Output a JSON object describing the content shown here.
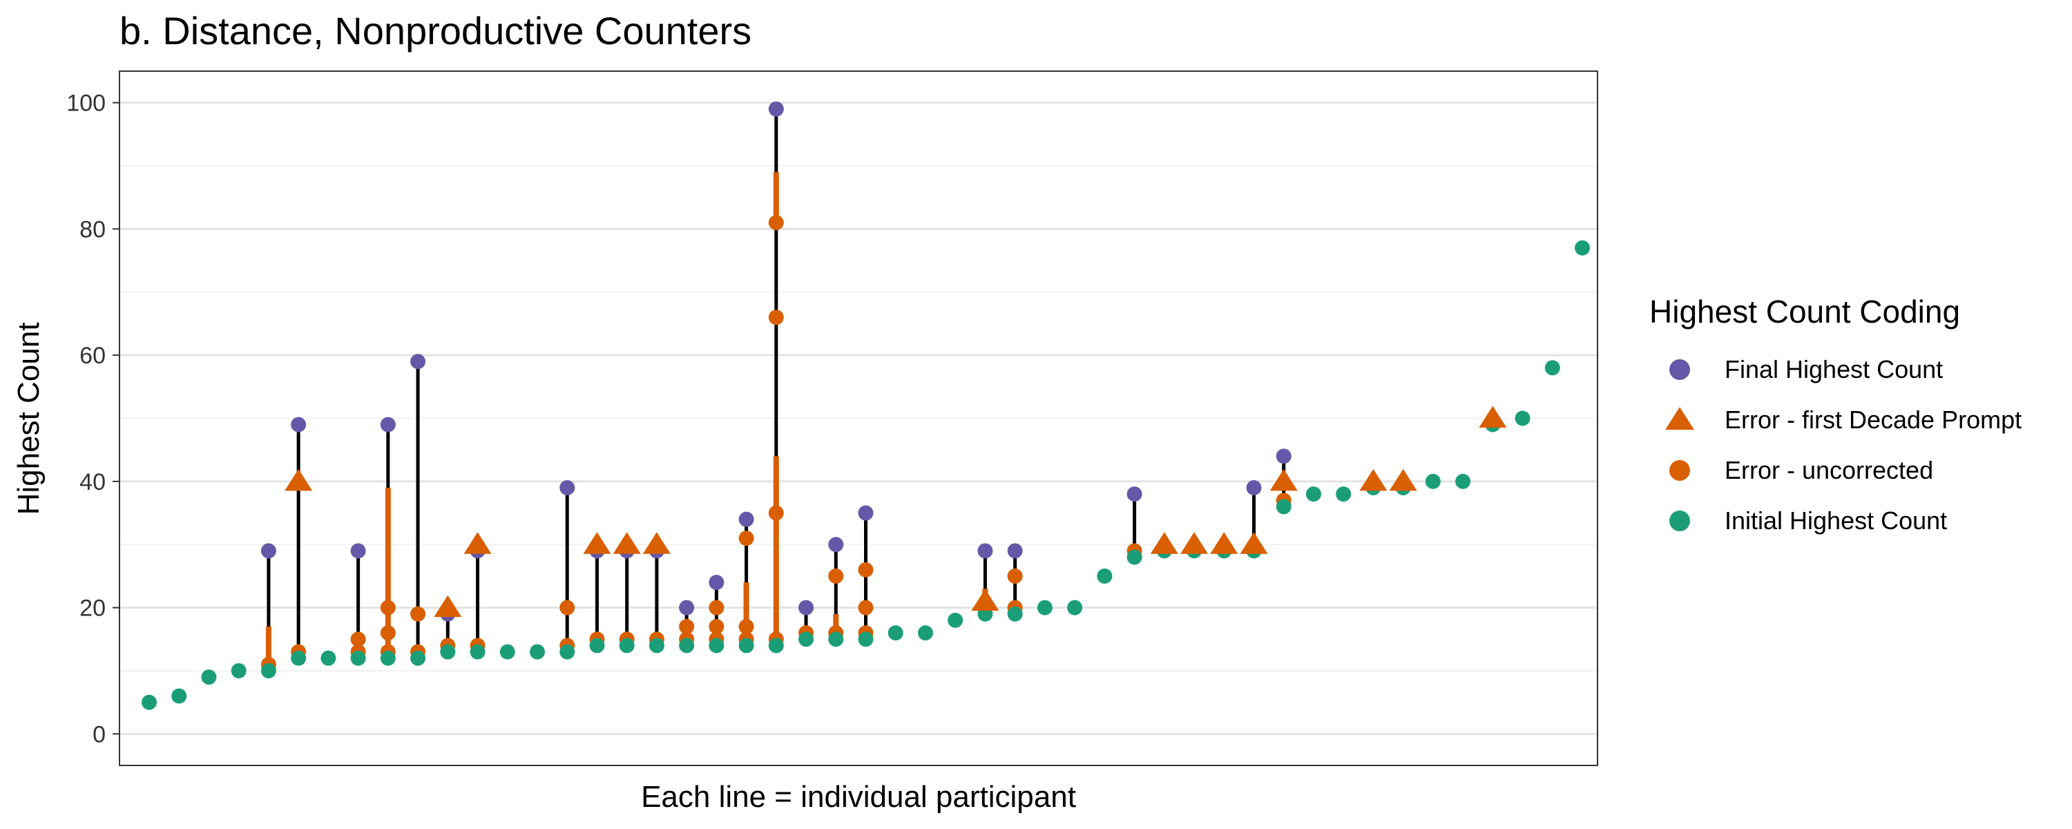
{
  "chart_data": {
    "type": "scatter",
    "title": "b. Distance, Nonproductive Counters",
    "xlabel": "Each line = individual participant",
    "ylabel": "Highest Count",
    "ylim": [
      -5,
      105
    ],
    "yticks": [
      0,
      20,
      40,
      60,
      80,
      100
    ],
    "grid": true,
    "legend": {
      "title": "Highest Count Coding",
      "position": "right",
      "entries": [
        {
          "key": "final",
          "label": "Final Highest Count",
          "shape": "circle",
          "color": "#6558A8"
        },
        {
          "key": "prompt",
          "label": "Error - first Decade Prompt",
          "shape": "triangle",
          "color": "#D95F02"
        },
        {
          "key": "uncorrected",
          "label": "Error - uncorrected",
          "shape": "circle",
          "color": "#D95F02"
        },
        {
          "key": "initial",
          "label": "Initial Highest Count",
          "shape": "circle",
          "color": "#1B9E77"
        }
      ]
    },
    "colors": {
      "final": "#6558A8",
      "error": "#D95F02",
      "initial": "#1B9E77",
      "line": "#000000"
    },
    "participants": [
      {
        "initial": 5,
        "final": 5,
        "errors": [],
        "prompts": []
      },
      {
        "initial": 6,
        "final": 6,
        "errors": [],
        "prompts": []
      },
      {
        "initial": 9,
        "final": 9,
        "errors": [],
        "prompts": []
      },
      {
        "initial": 10,
        "final": 10,
        "errors": [],
        "prompts": []
      },
      {
        "initial": 10,
        "final": 29,
        "errors": [
          11
        ],
        "prompts": [],
        "orange_segments": [
          [
            10,
            17
          ]
        ]
      },
      {
        "initial": 12,
        "final": 49,
        "errors": [
          13
        ],
        "prompts": [
          40
        ]
      },
      {
        "initial": 12,
        "final": 12,
        "errors": [],
        "prompts": []
      },
      {
        "initial": 12,
        "final": 29,
        "errors": [
          13,
          15
        ],
        "prompts": []
      },
      {
        "initial": 12,
        "final": 49,
        "errors": [
          13,
          16,
          20
        ],
        "prompts": [],
        "orange_segments": [
          [
            12,
            39
          ]
        ]
      },
      {
        "initial": 12,
        "final": 59,
        "errors": [
          13,
          19
        ],
        "prompts": []
      },
      {
        "initial": 13,
        "final": 19,
        "errors": [
          14
        ],
        "prompts": [
          20
        ]
      },
      {
        "initial": 13,
        "final": 29,
        "errors": [
          14
        ],
        "prompts": [
          30
        ]
      },
      {
        "initial": 13,
        "final": 13,
        "errors": [],
        "prompts": []
      },
      {
        "initial": 13,
        "final": 13,
        "errors": [],
        "prompts": []
      },
      {
        "initial": 13,
        "final": 39,
        "errors": [
          14,
          20
        ],
        "prompts": []
      },
      {
        "initial": 14,
        "final": 29,
        "errors": [
          15
        ],
        "prompts": [
          30
        ]
      },
      {
        "initial": 14,
        "final": 29,
        "errors": [
          15
        ],
        "prompts": [
          30
        ]
      },
      {
        "initial": 14,
        "final": 29,
        "errors": [
          15
        ],
        "prompts": [
          30
        ]
      },
      {
        "initial": 14,
        "final": 20,
        "errors": [
          15,
          17
        ],
        "prompts": []
      },
      {
        "initial": 14,
        "final": 24,
        "errors": [
          15,
          17,
          20
        ],
        "prompts": []
      },
      {
        "initial": 14,
        "final": 34,
        "errors": [
          15,
          17,
          31
        ],
        "prompts": [],
        "orange_segments": [
          [
            14,
            24
          ]
        ]
      },
      {
        "initial": 14,
        "final": 99,
        "errors": [
          15,
          35,
          66,
          81
        ],
        "prompts": [],
        "orange_segments": [
          [
            15,
            44
          ],
          [
            81,
            89
          ]
        ]
      },
      {
        "initial": 15,
        "final": 20,
        "errors": [
          16
        ],
        "prompts": []
      },
      {
        "initial": 15,
        "final": 30,
        "errors": [
          16,
          25
        ],
        "prompts": [],
        "orange_segments": [
          [
            15,
            19
          ]
        ]
      },
      {
        "initial": 15,
        "final": 35,
        "errors": [
          16,
          20,
          26
        ],
        "prompts": []
      },
      {
        "initial": 16,
        "final": 16,
        "errors": [],
        "prompts": []
      },
      {
        "initial": 16,
        "final": 16,
        "errors": [],
        "prompts": []
      },
      {
        "initial": 18,
        "final": 18,
        "errors": [],
        "prompts": []
      },
      {
        "initial": 19,
        "final": 29,
        "errors": [],
        "prompts": [
          21
        ],
        "orange_segments": [
          [
            19,
            23
          ]
        ]
      },
      {
        "initial": 19,
        "final": 29,
        "errors": [
          20,
          25
        ],
        "prompts": []
      },
      {
        "initial": 20,
        "final": 20,
        "errors": [],
        "prompts": []
      },
      {
        "initial": 20,
        "final": 20,
        "errors": [],
        "prompts": []
      },
      {
        "initial": 25,
        "final": 25,
        "errors": [],
        "prompts": []
      },
      {
        "initial": 28,
        "final": 38,
        "errors": [
          29
        ],
        "prompts": []
      },
      {
        "initial": 29,
        "final": 29,
        "errors": [],
        "prompts": [
          30
        ]
      },
      {
        "initial": 29,
        "final": 29,
        "errors": [],
        "prompts": [
          30
        ]
      },
      {
        "initial": 29,
        "final": 29,
        "errors": [],
        "prompts": [
          30
        ]
      },
      {
        "initial": 29,
        "final": 39,
        "errors": [],
        "prompts": [
          30
        ]
      },
      {
        "initial": 36,
        "final": 44,
        "errors": [
          37
        ],
        "prompts": [
          40
        ]
      },
      {
        "initial": 38,
        "final": 38,
        "errors": [],
        "prompts": []
      },
      {
        "initial": 38,
        "final": 38,
        "errors": [],
        "prompts": []
      },
      {
        "initial": 39,
        "final": 39,
        "errors": [],
        "prompts": [
          40
        ]
      },
      {
        "initial": 39,
        "final": 39,
        "errors": [],
        "prompts": [
          40
        ]
      },
      {
        "initial": 40,
        "final": 40,
        "errors": [],
        "prompts": []
      },
      {
        "initial": 40,
        "final": 40,
        "errors": [],
        "prompts": []
      },
      {
        "initial": 49,
        "final": 49,
        "errors": [],
        "prompts": [
          50
        ]
      },
      {
        "initial": 50,
        "final": 50,
        "errors": [],
        "prompts": []
      },
      {
        "initial": 58,
        "final": 58,
        "errors": [],
        "prompts": []
      },
      {
        "initial": 77,
        "final": 77,
        "errors": [],
        "prompts": []
      }
    ]
  }
}
